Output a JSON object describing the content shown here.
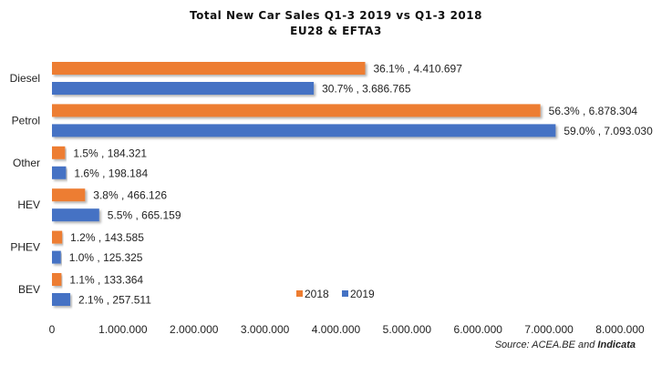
{
  "chart_data": {
    "type": "bar",
    "orientation": "horizontal",
    "title": "Total New Car Sales Q1-3 2019 vs Q1-3 2018",
    "subtitle": "EU28 & EFTA3",
    "categories": [
      "Diesel",
      "Petrol",
      "Other",
      "HEV",
      "PHEV",
      "BEV"
    ],
    "series": [
      {
        "name": "2018",
        "color": "#ED7D31",
        "values": [
          4410697,
          6878304,
          184321,
          466126,
          143585,
          133364
        ],
        "labels": [
          "36.1% , 4.410.697",
          "56.3% , 6.878.304",
          "1.5% , 184.321",
          "3.8% , 466.126",
          "1.2% , 143.585",
          "1.1% , 133.364"
        ]
      },
      {
        "name": "2019",
        "color": "#4472C4",
        "values": [
          3686765,
          7093030,
          198184,
          665159,
          125325,
          257511
        ],
        "labels": [
          "30.7% , 3.686.765",
          "59.0% , 7.093.030",
          "1.6% , 198.184",
          "5.5% , 665.159",
          "1.0% , 125.325",
          "2.1% , 257.511"
        ]
      }
    ],
    "xlim": [
      0,
      8000000
    ],
    "xticks": [
      "0",
      "1.000.000",
      "2.000.000",
      "3.000.000",
      "4.000.000",
      "5.000.000",
      "6.000.000",
      "7.000.000",
      "8.000.000"
    ],
    "grid": false,
    "legend_position": "bottom-center",
    "source_prefix": "Source: ACEA.BE and ",
    "source_brand": "Indicata"
  }
}
